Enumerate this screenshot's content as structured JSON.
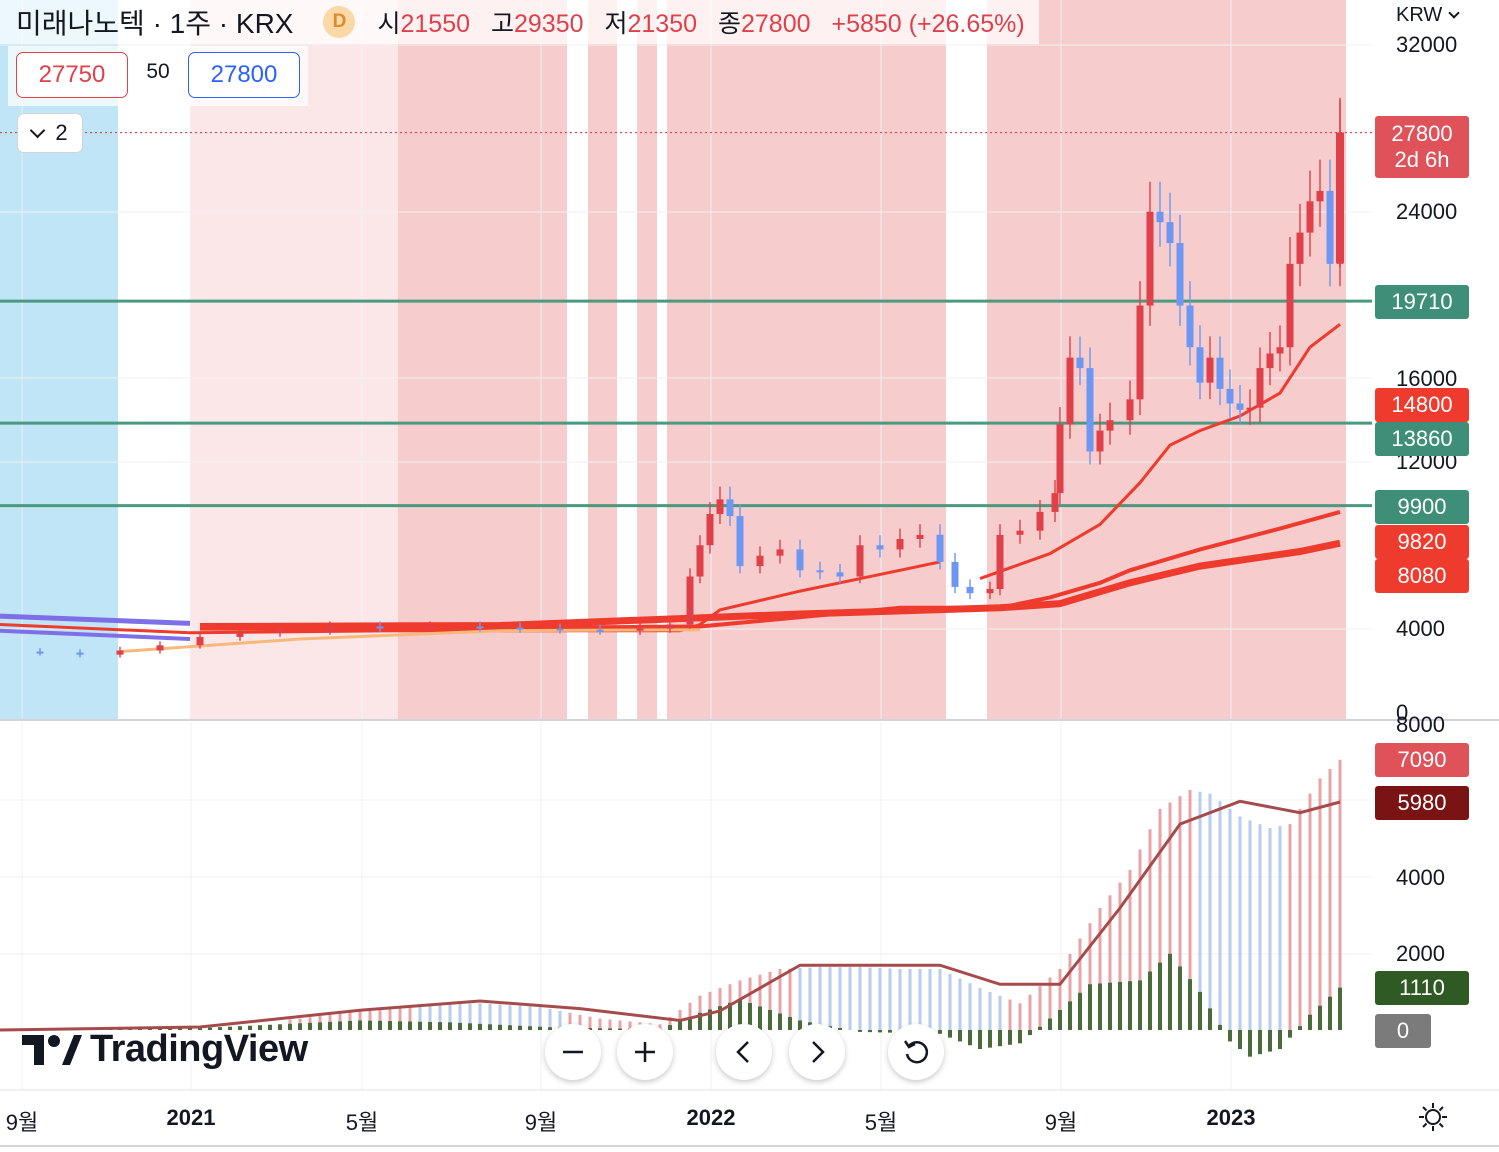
{
  "header": {
    "symbol_line": "미래나노텍 · 1주 · KRX",
    "badge": "D",
    "open_label": "시",
    "open": "21550",
    "high_label": "고",
    "high": "29350",
    "low_label": "저",
    "low": "21350",
    "close_label": "종",
    "close": "27800",
    "change": "+5850 (+26.65%)"
  },
  "trade": {
    "bid": "27750",
    "spread": "50",
    "ask": "27800"
  },
  "indicators_toggle": {
    "count": "2"
  },
  "currency": "KRW",
  "colors": {
    "up": "#e0404a",
    "down": "#6d97f2",
    "hline": "#4a9a80",
    "ma": "#ee3b2e",
    "bg_session": "#f6cccc",
    "bg_light": "#fbe7e8",
    "bg_blue": "#bfe5f6",
    "vol_up": "#e8a3a6",
    "vol_down": "#b6cdf0",
    "osc": "#4a6b3a",
    "signal": "#a64b4b"
  },
  "chart_data": [
    {
      "type": "candlestick",
      "price_axis": {
        "ticks": [
          "32000",
          "24000",
          "16000",
          "12000",
          "4000",
          "0"
        ]
      },
      "time_axis": {
        "ticks": [
          "9월",
          "2021",
          "5월",
          "9월",
          "2022",
          "5월",
          "9월",
          "2023"
        ]
      },
      "horizontal_lines": [
        19710,
        13860,
        9900
      ],
      "price_tags": [
        {
          "value": "27800",
          "sub": "2d 6h",
          "kind": "last"
        },
        {
          "value": "19710",
          "kind": "hline"
        },
        {
          "value": "14800",
          "kind": "ma"
        },
        {
          "value": "13860",
          "kind": "hline"
        },
        {
          "value": "9900",
          "kind": "hline"
        },
        {
          "value": "9820",
          "kind": "ma"
        },
        {
          "value": "8080",
          "kind": "ma"
        }
      ],
      "last_candle": {
        "open": 21550,
        "high": 29350,
        "low": 21350,
        "close": 27800
      }
    },
    {
      "type": "bar",
      "axis": {
        "ticks": [
          "8000",
          "4000",
          "2000"
        ]
      },
      "value_tags": [
        {
          "value": "7090",
          "kind": "vol"
        },
        {
          "value": "5980",
          "kind": "signal"
        },
        {
          "value": "1110",
          "kind": "osc"
        },
        {
          "value": "0",
          "kind": "zero"
        }
      ]
    }
  ],
  "branding": {
    "logo_text": "TradingView"
  },
  "nav": [
    "zoom-out",
    "zoom-in",
    "scroll-left",
    "scroll-right",
    "reset"
  ]
}
